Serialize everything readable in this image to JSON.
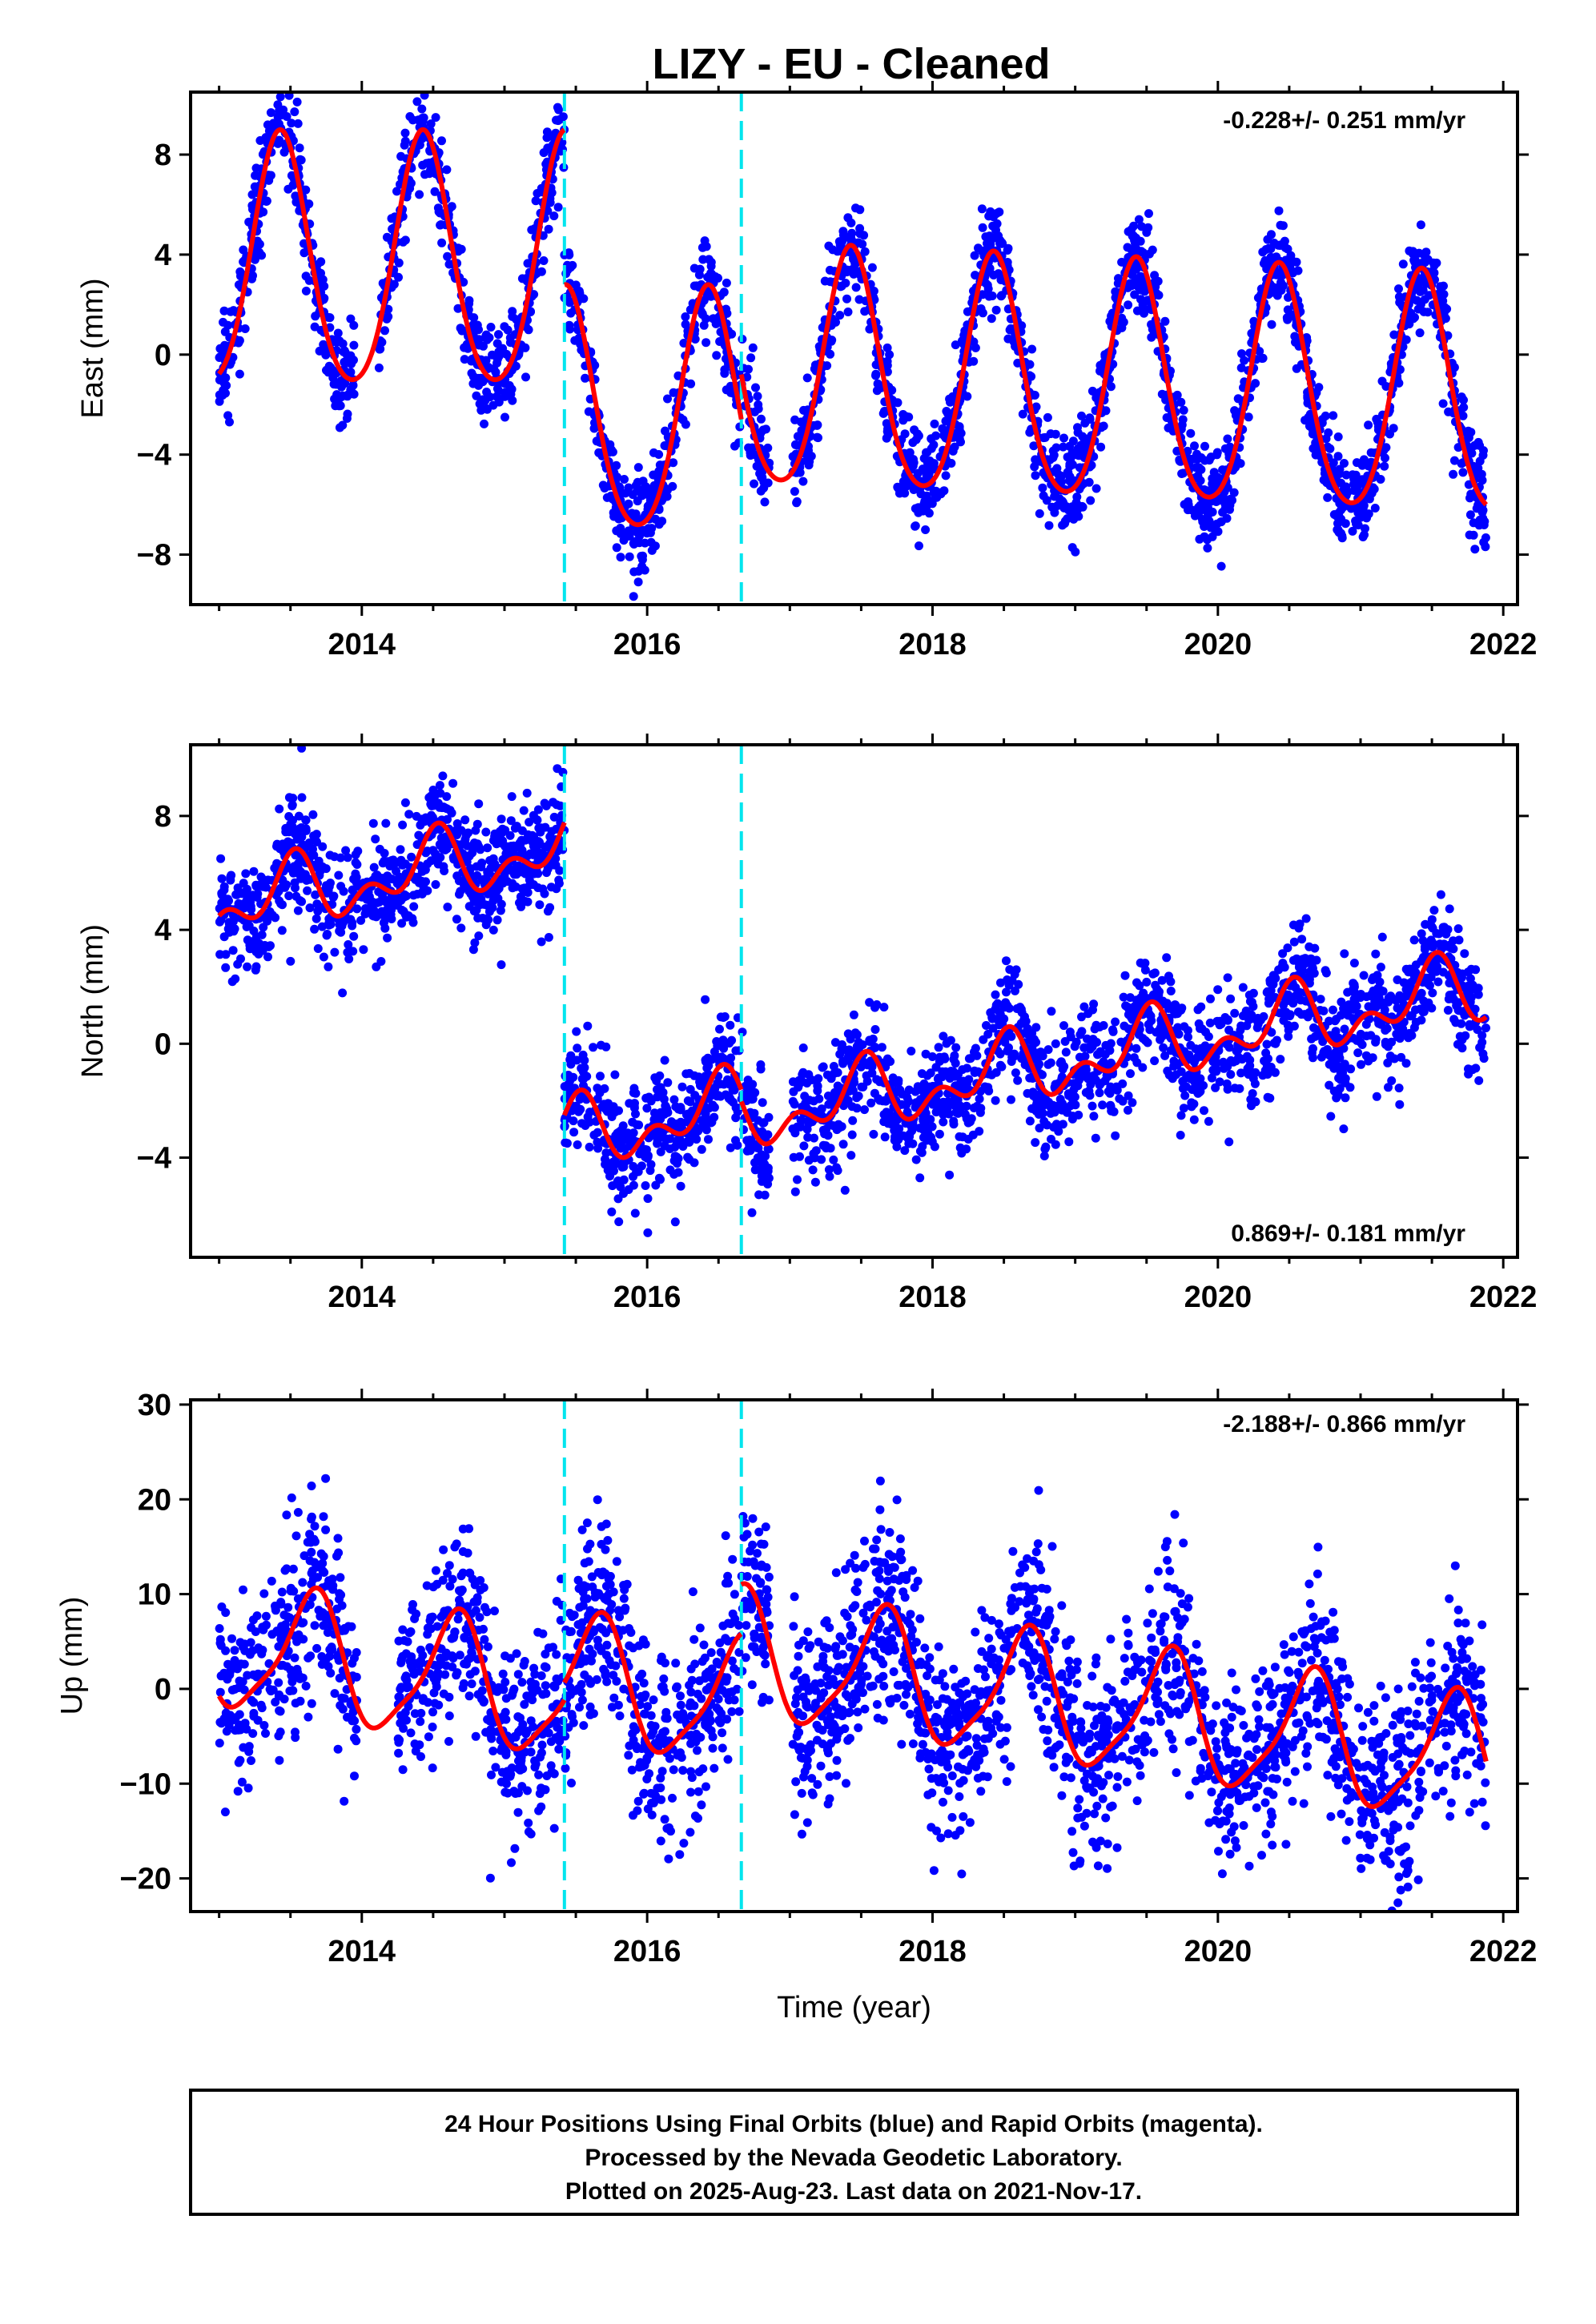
{
  "title": "LIZY  - EU - Cleaned",
  "footer": [
    "24 Hour Positions Using Final Orbits (blue) and Rapid Orbits (magenta).",
    "Processed by the Nevada Geodetic Laboratory.",
    "Plotted on 2025-Aug-23. Last data on 2021-Nov-17."
  ],
  "colors": {
    "points": "#0000ff",
    "model": "#ff0000",
    "offsets": "#00e5ee",
    "frame": "#000000"
  },
  "chart_data": [
    {
      "type": "scatter",
      "panel": "east",
      "ylabel": "East (mm)",
      "xlabel": "",
      "rate_text": "-0.228+/- 0.251 mm/yr",
      "xlim": [
        2012.8,
        2022.1
      ],
      "ylim": [
        -10,
        10.5
      ],
      "xticks": [
        2014,
        2016,
        2018,
        2020,
        2022
      ],
      "yticks": [
        -8,
        -4,
        0,
        4,
        8
      ],
      "offset_epochs": [
        2015.42,
        2016.66
      ],
      "model": {
        "segments": [
          {
            "start": 2013.0,
            "end": 2015.42,
            "base": 3.4,
            "rate": 0,
            "a1": 5.0,
            "ph1": 2013.18,
            "a2": 0.6,
            "ph2": 2013.3
          },
          {
            "start": 2015.42,
            "end": 2016.66,
            "base": -2.6,
            "rate": 0,
            "a1": 4.8,
            "ph1": 2015.18,
            "a2": 0.6,
            "ph2": 2015.3
          },
          {
            "start": 2016.66,
            "end": 2021.88,
            "base": -0.8,
            "rate": -0.228,
            "a1": 4.75,
            "ph1": 2016.18,
            "a2": 0.6,
            "ph2": 2016.3
          }
        ]
      },
      "points": {
        "count": 2900,
        "noise": 1.0,
        "gaps": [
          [
            2013.95,
            2014.12
          ],
          [
            2016.86,
            2017.02
          ]
        ]
      }
    },
    {
      "type": "scatter",
      "panel": "north",
      "ylabel": "North (mm)",
      "xlabel": "",
      "rate_text": "0.869+/- 0.181 mm/yr",
      "xlim": [
        2012.8,
        2022.1
      ],
      "ylim": [
        -7.5,
        10.5
      ],
      "xticks": [
        2014,
        2016,
        2018,
        2020,
        2022
      ],
      "yticks": [
        -4,
        0,
        4,
        8
      ],
      "offset_epochs": [
        2015.42,
        2016.66
      ],
      "model": {
        "segments": [
          {
            "start": 2013.0,
            "end": 2015.42,
            "base": 4.8,
            "rate": 0.9,
            "a1": 0.9,
            "ph1": 2013.25,
            "a2": 0.7,
            "ph2": 2013.42
          },
          {
            "start": 2015.42,
            "end": 2016.66,
            "base": -3.3,
            "rate": 0.9,
            "a1": 0.9,
            "ph1": 2015.25,
            "a2": 0.7,
            "ph2": 2015.42
          },
          {
            "start": 2016.66,
            "end": 2021.88,
            "base": -2.6,
            "rate": 0.869,
            "a1": 0.9,
            "ph1": 2016.25,
            "a2": 0.7,
            "ph2": 2016.42
          }
        ]
      },
      "points": {
        "count": 2900,
        "noise": 1.0,
        "gaps": [
          [
            2016.86,
            2017.02
          ]
        ]
      }
    },
    {
      "type": "scatter",
      "panel": "up",
      "ylabel": "Up (mm)",
      "xlabel": "Time (year)",
      "rate_text": "-2.188+/- 0.866 mm/yr",
      "xlim": [
        2012.8,
        2022.1
      ],
      "ylim": [
        -23.5,
        30.5
      ],
      "xticks": [
        2014,
        2016,
        2018,
        2020,
        2022
      ],
      "yticks": [
        -20,
        -10,
        0,
        10,
        20,
        30
      ],
      "offset_epochs": [
        2015.42,
        2016.66
      ],
      "model": {
        "segments": [
          {
            "start": 2013.0,
            "end": 2015.42,
            "base": 4.5,
            "rate": -2.2,
            "a1": 6.5,
            "ph1": 2013.4,
            "a2": 1.5,
            "ph2": 2013.6
          },
          {
            "start": 2015.42,
            "end": 2016.66,
            "base": 1.0,
            "rate": -2.2,
            "a1": 6.5,
            "ph1": 2015.4,
            "a2": 1.5,
            "ph2": 2015.6
          },
          {
            "start": 2016.66,
            "end": 2021.88,
            "base": 3.5,
            "rate": -2.188,
            "a1": 6.5,
            "ph1": 2016.4,
            "a2": 1.5,
            "ph2": 2016.6
          }
        ]
      },
      "points": {
        "count": 2900,
        "noise": 5.0,
        "gaps": [
          [
            2013.97,
            2014.25
          ],
          [
            2016.86,
            2017.02
          ]
        ]
      }
    }
  ]
}
